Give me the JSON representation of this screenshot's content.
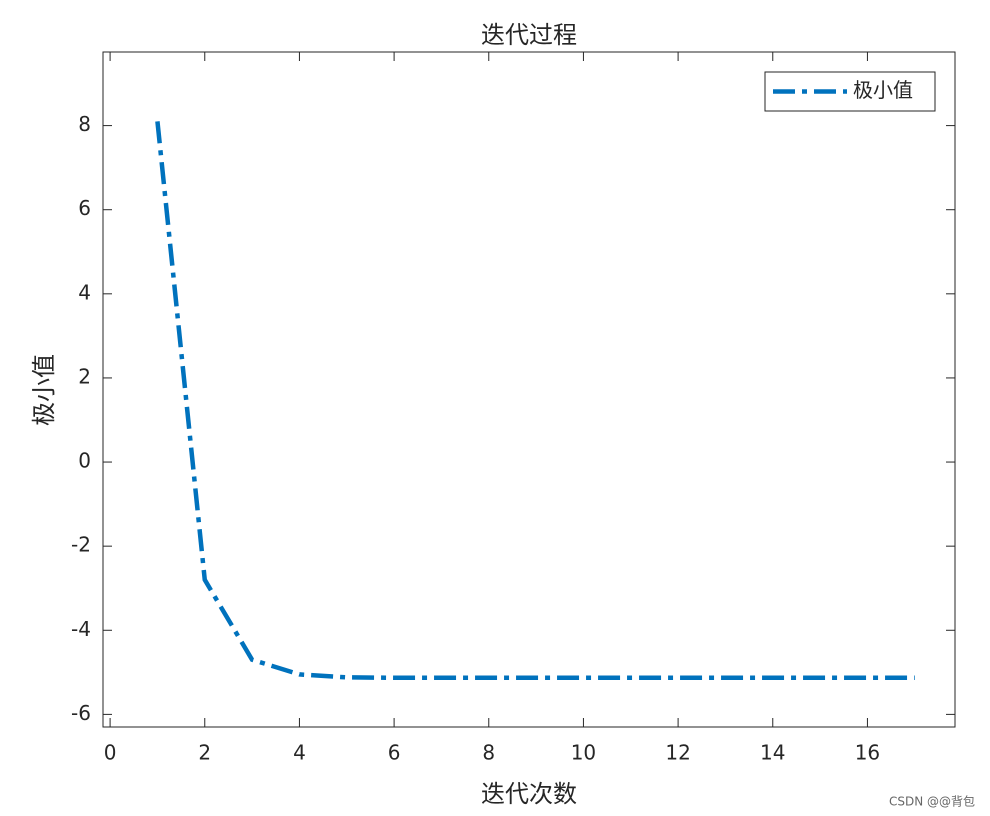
{
  "chart_data": {
    "type": "line",
    "title": "迭代过程",
    "x_label": "迭代次数",
    "y_label": "极小值",
    "x": [
      1,
      2,
      3,
      4,
      5,
      6,
      7,
      8,
      9,
      10,
      11,
      12,
      13,
      14,
      15,
      16,
      17
    ],
    "series": [
      {
        "name": "极小值",
        "color": "#0072bd",
        "values": [
          8.1,
          -2.8,
          -4.7,
          -5.05,
          -5.12,
          -5.13,
          -5.13,
          -5.13,
          -5.13,
          -5.13,
          -5.13,
          -5.13,
          -5.13,
          -5.13,
          -5.13,
          -5.13,
          -5.13
        ]
      }
    ],
    "xlim": [
      -0.15,
      17.85
    ],
    "ylim": [
      -6.3,
      9.75
    ],
    "xticks": [
      0,
      2,
      4,
      6,
      8,
      10,
      12,
      14,
      16
    ],
    "yticks": [
      -6,
      -4,
      -2,
      0,
      2,
      4,
      6,
      8
    ],
    "legend": "northeast",
    "grid": false
  },
  "watermark": "CSDN @@背包"
}
